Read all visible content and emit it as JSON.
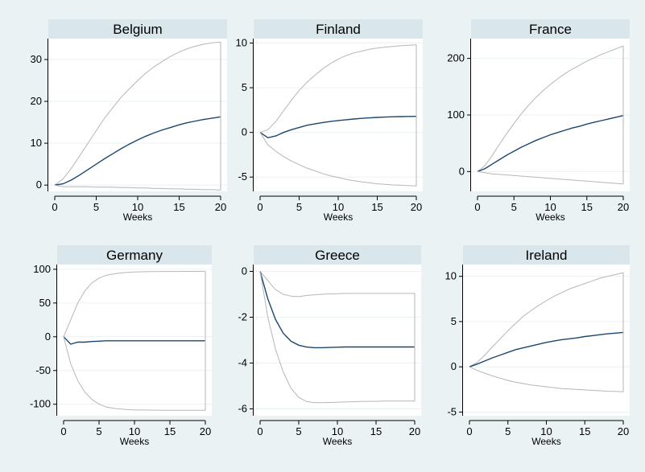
{
  "chart_data": [
    {
      "type": "line",
      "title": "Belgium",
      "xlabel": "Weeks",
      "ylabel": "",
      "xlim": [
        0,
        20
      ],
      "ylim": [
        -1.5,
        35
      ],
      "xticks": [
        0,
        5,
        10,
        15,
        20
      ],
      "yticks": [
        0,
        10,
        20,
        30
      ],
      "series": [
        {
          "role": "upper",
          "x": [
            0,
            1,
            2,
            3,
            4,
            5,
            6,
            7,
            8,
            9,
            10,
            11,
            12,
            13,
            14,
            15,
            16,
            17,
            18,
            19,
            20
          ],
          "values": [
            0,
            1.5,
            4,
            7,
            10,
            13,
            16,
            18.5,
            21,
            23,
            25,
            26.8,
            28.3,
            29.6,
            30.8,
            31.8,
            32.6,
            33.2,
            33.7,
            34,
            34.2
          ]
        },
        {
          "role": "irf",
          "x": [
            0,
            1,
            2,
            3,
            4,
            5,
            6,
            7,
            8,
            9,
            10,
            11,
            12,
            13,
            14,
            15,
            16,
            17,
            18,
            19,
            20
          ],
          "values": [
            0,
            0.3,
            1.2,
            2.4,
            3.7,
            5,
            6.3,
            7.5,
            8.7,
            9.8,
            10.8,
            11.7,
            12.5,
            13.2,
            13.8,
            14.4,
            14.9,
            15.3,
            15.7,
            16,
            16.3
          ]
        },
        {
          "role": "lower",
          "x": [
            0,
            1,
            2,
            3,
            4,
            5,
            6,
            7,
            8,
            9,
            10,
            11,
            12,
            13,
            14,
            15,
            16,
            17,
            18,
            19,
            20
          ],
          "values": [
            0,
            -0.4,
            -0.4,
            -0.4,
            -0.4,
            -0.5,
            -0.5,
            -0.5,
            -0.6,
            -0.6,
            -0.7,
            -0.7,
            -0.8,
            -0.8,
            -0.9,
            -0.9,
            -1,
            -1,
            -1.1,
            -1.1,
            -1.2
          ]
        }
      ]
    },
    {
      "type": "line",
      "title": "Finland",
      "xlabel": "Weeks",
      "ylabel": "",
      "xlim": [
        0,
        20
      ],
      "ylim": [
        -6.6,
        10.5
      ],
      "xticks": [
        0,
        5,
        10,
        15,
        20
      ],
      "yticks": [
        -5,
        0,
        5,
        10
      ],
      "series": [
        {
          "role": "upper",
          "x": [
            0,
            1,
            2,
            3,
            4,
            5,
            6,
            7,
            8,
            9,
            10,
            11,
            12,
            13,
            14,
            15,
            16,
            17,
            18,
            19,
            20
          ],
          "values": [
            0,
            0.3,
            1.2,
            2.4,
            3.6,
            4.7,
            5.6,
            6.4,
            7.1,
            7.7,
            8.2,
            8.6,
            8.9,
            9.1,
            9.3,
            9.45,
            9.55,
            9.63,
            9.7,
            9.75,
            9.8
          ]
        },
        {
          "role": "irf",
          "x": [
            0,
            1,
            2,
            3,
            4,
            5,
            6,
            7,
            8,
            9,
            10,
            11,
            12,
            13,
            14,
            15,
            16,
            17,
            18,
            19,
            20
          ],
          "values": [
            0,
            -0.6,
            -0.4,
            0,
            0.3,
            0.55,
            0.8,
            0.95,
            1.1,
            1.22,
            1.33,
            1.42,
            1.5,
            1.57,
            1.63,
            1.68,
            1.72,
            1.75,
            1.77,
            1.79,
            1.8
          ]
        },
        {
          "role": "lower",
          "x": [
            0,
            1,
            2,
            3,
            4,
            5,
            6,
            7,
            8,
            9,
            10,
            11,
            12,
            13,
            14,
            15,
            16,
            17,
            18,
            19,
            20
          ],
          "values": [
            0,
            -1.4,
            -2.1,
            -2.7,
            -3.2,
            -3.6,
            -4,
            -4.3,
            -4.6,
            -4.85,
            -5.05,
            -5.25,
            -5.4,
            -5.55,
            -5.65,
            -5.75,
            -5.82,
            -5.88,
            -5.92,
            -5.96,
            -6
          ]
        }
      ]
    },
    {
      "type": "line",
      "title": "France",
      "xlabel": "Weeks",
      "ylabel": "",
      "xlim": [
        0,
        20
      ],
      "ylim": [
        -35,
        235
      ],
      "xticks": [
        0,
        5,
        10,
        15,
        20
      ],
      "yticks": [
        0,
        100,
        200
      ],
      "series": [
        {
          "role": "upper",
          "x": [
            0,
            1,
            2,
            3,
            4,
            5,
            6,
            7,
            8,
            9,
            10,
            11,
            12,
            13,
            14,
            15,
            16,
            17,
            18,
            19,
            20
          ],
          "values": [
            0,
            10,
            28,
            48,
            67,
            85,
            102,
            117,
            131,
            143,
            154,
            164,
            173,
            181,
            188,
            195,
            201,
            207,
            212,
            217,
            222
          ]
        },
        {
          "role": "irf",
          "x": [
            0,
            1,
            2,
            3,
            4,
            5,
            6,
            7,
            8,
            9,
            10,
            11,
            12,
            13,
            14,
            15,
            16,
            17,
            18,
            19,
            20
          ],
          "values": [
            0,
            5,
            13,
            21,
            29,
            36,
            43,
            49,
            55,
            60,
            65,
            69,
            73,
            77,
            80,
            84,
            87,
            90,
            93,
            96,
            99
          ]
        },
        {
          "role": "lower",
          "x": [
            0,
            1,
            2,
            3,
            4,
            5,
            6,
            7,
            8,
            9,
            10,
            11,
            12,
            13,
            14,
            15,
            16,
            17,
            18,
            19,
            20
          ],
          "values": [
            0,
            -2,
            -4,
            -5,
            -6,
            -7,
            -8,
            -9,
            -10,
            -11,
            -12,
            -13,
            -14,
            -15,
            -16,
            -17,
            -18,
            -19,
            -20,
            -21,
            -22
          ]
        }
      ]
    },
    {
      "type": "line",
      "title": "Germany",
      "xlabel": "Weeks",
      "ylabel": "",
      "xlim": [
        0,
        20
      ],
      "ylim": [
        -117,
        107
      ],
      "xticks": [
        0,
        5,
        10,
        15,
        20
      ],
      "yticks": [
        -100,
        -50,
        0,
        50,
        100
      ],
      "series": [
        {
          "role": "upper",
          "x": [
            0,
            1,
            2,
            3,
            4,
            5,
            6,
            7,
            8,
            9,
            10,
            11,
            12,
            13,
            14,
            15,
            16,
            17,
            18,
            19,
            20
          ],
          "values": [
            0,
            25,
            50,
            68,
            80,
            87,
            91,
            93,
            94.5,
            95.5,
            96,
            96.3,
            96.5,
            96.6,
            96.7,
            96.8,
            96.8,
            96.9,
            96.9,
            97,
            97
          ]
        },
        {
          "role": "irf",
          "x": [
            0,
            1,
            2,
            3,
            4,
            5,
            6,
            7,
            8,
            9,
            10,
            11,
            12,
            13,
            14,
            15,
            16,
            17,
            18,
            19,
            20
          ],
          "values": [
            0,
            -11,
            -8,
            -8,
            -7,
            -6.5,
            -6,
            -6,
            -6,
            -6,
            -6,
            -6,
            -6,
            -6,
            -6,
            -6,
            -6,
            -6,
            -6,
            -6,
            -6
          ]
        },
        {
          "role": "lower",
          "x": [
            0,
            1,
            2,
            3,
            4,
            5,
            6,
            7,
            8,
            9,
            10,
            11,
            12,
            13,
            14,
            15,
            16,
            17,
            18,
            19,
            20
          ],
          "values": [
            0,
            -40,
            -65,
            -82,
            -93,
            -100,
            -104,
            -106,
            -107,
            -108,
            -108.3,
            -108.5,
            -108.7,
            -108.8,
            -108.9,
            -109,
            -109,
            -109,
            -109,
            -109,
            -109
          ]
        }
      ]
    },
    {
      "type": "line",
      "title": "Greece",
      "xlabel": "Weeks",
      "ylabel": "",
      "xlim": [
        0,
        20
      ],
      "ylim": [
        -6.3,
        0.3
      ],
      "xticks": [
        0,
        5,
        10,
        15,
        20
      ],
      "yticks": [
        -6,
        -4,
        -2,
        0
      ],
      "series": [
        {
          "role": "upper",
          "x": [
            0,
            1,
            2,
            3,
            4,
            5,
            6,
            7,
            8,
            9,
            10,
            11,
            12,
            13,
            14,
            15,
            16,
            17,
            18,
            19,
            20
          ],
          "values": [
            0,
            -0.4,
            -0.8,
            -1,
            -1.08,
            -1.1,
            -1.05,
            -1.02,
            -1,
            -0.98,
            -0.97,
            -0.96,
            -0.96,
            -0.96,
            -0.96,
            -0.96,
            -0.96,
            -0.96,
            -0.96,
            -0.96,
            -0.96
          ]
        },
        {
          "role": "irf",
          "x": [
            0,
            1,
            2,
            3,
            4,
            5,
            6,
            7,
            8,
            9,
            10,
            11,
            12,
            13,
            14,
            15,
            16,
            17,
            18,
            19,
            20
          ],
          "values": [
            0,
            -1.2,
            -2.1,
            -2.7,
            -3.05,
            -3.22,
            -3.3,
            -3.33,
            -3.33,
            -3.32,
            -3.31,
            -3.3,
            -3.3,
            -3.3,
            -3.3,
            -3.3,
            -3.3,
            -3.3,
            -3.3,
            -3.3,
            -3.3
          ]
        },
        {
          "role": "lower",
          "x": [
            0,
            1,
            2,
            3,
            4,
            5,
            6,
            7,
            8,
            9,
            10,
            11,
            12,
            13,
            14,
            15,
            16,
            17,
            18,
            19,
            20
          ],
          "values": [
            0,
            -2,
            -3.4,
            -4.4,
            -5.1,
            -5.5,
            -5.68,
            -5.73,
            -5.73,
            -5.72,
            -5.71,
            -5.7,
            -5.69,
            -5.68,
            -5.67,
            -5.67,
            -5.66,
            -5.66,
            -5.66,
            -5.66,
            -5.66
          ]
        }
      ]
    },
    {
      "type": "line",
      "title": "Ireland",
      "xlabel": "Weeks",
      "ylabel": "",
      "xlim": [
        0,
        20
      ],
      "ylim": [
        -5.4,
        11.3
      ],
      "xticks": [
        0,
        5,
        10,
        15,
        20
      ],
      "yticks": [
        -5,
        0,
        5,
        10
      ],
      "series": [
        {
          "role": "upper",
          "x": [
            0,
            1,
            2,
            3,
            4,
            5,
            6,
            7,
            8,
            9,
            10,
            11,
            12,
            13,
            14,
            15,
            16,
            17,
            18,
            19,
            20
          ],
          "values": [
            0,
            0.5,
            1.3,
            2.2,
            3.1,
            4,
            4.8,
            5.6,
            6.2,
            6.8,
            7.3,
            7.8,
            8.2,
            8.6,
            8.9,
            9.2,
            9.5,
            9.8,
            10,
            10.2,
            10.4
          ]
        },
        {
          "role": "irf",
          "x": [
            0,
            1,
            2,
            3,
            4,
            5,
            6,
            7,
            8,
            9,
            10,
            11,
            12,
            13,
            14,
            15,
            16,
            17,
            18,
            19,
            20
          ],
          "values": [
            0,
            0.3,
            0.65,
            1,
            1.3,
            1.6,
            1.9,
            2.1,
            2.3,
            2.5,
            2.7,
            2.85,
            3,
            3.1,
            3.2,
            3.35,
            3.45,
            3.55,
            3.65,
            3.72,
            3.8
          ]
        },
        {
          "role": "lower",
          "x": [
            0,
            1,
            2,
            3,
            4,
            5,
            6,
            7,
            8,
            9,
            10,
            11,
            12,
            13,
            14,
            15,
            16,
            17,
            18,
            19,
            20
          ],
          "values": [
            0,
            -0.4,
            -0.7,
            -1,
            -1.25,
            -1.5,
            -1.7,
            -1.85,
            -2,
            -2.1,
            -2.2,
            -2.3,
            -2.4,
            -2.45,
            -2.5,
            -2.55,
            -2.6,
            -2.65,
            -2.7,
            -2.72,
            -2.75
          ]
        }
      ]
    }
  ],
  "colors": {
    "background": "#eaf2f3",
    "plot_background": "#ffffff",
    "title_strip": "#d9e6eb",
    "irf_line": "#1a476f",
    "band_line": "#b6b6b6",
    "grid": "#eaf2f3"
  }
}
